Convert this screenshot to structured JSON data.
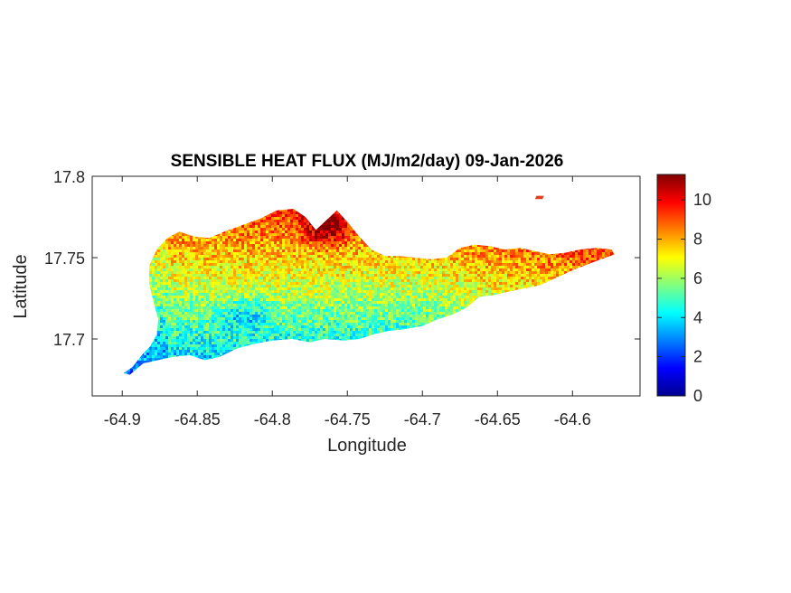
{
  "chart_data": {
    "type": "heatmap",
    "title": "SENSIBLE HEAT FLUX (MJ/m2/day) 09-Jan-2026",
    "xlabel": "Longitude",
    "ylabel": "Latitude",
    "xlim": [
      -64.92,
      -64.555
    ],
    "ylim": [
      17.665,
      17.8
    ],
    "x_ticks": [
      -64.9,
      -64.85,
      -64.8,
      -64.75,
      -64.7,
      -64.65,
      -64.6
    ],
    "x_tick_labels": [
      "-64.9",
      "-64.85",
      "-64.8",
      "-64.75",
      "-64.7",
      "-64.65",
      "-64.6"
    ],
    "y_ticks": [
      17.7,
      17.75,
      17.8
    ],
    "y_tick_labels": [
      "17.7",
      "17.75",
      "17.8"
    ],
    "colormap": "jet",
    "colorbar": {
      "range": [
        0,
        11.3
      ],
      "ticks": [
        0,
        2,
        4,
        6,
        8,
        10
      ],
      "tick_labels": [
        "0",
        "2",
        "4",
        "6",
        "8",
        "10"
      ]
    },
    "grid": false,
    "island_outline": [
      [
        -64.899,
        17.679
      ],
      [
        -64.893,
        17.683
      ],
      [
        -64.887,
        17.69
      ],
      [
        -64.881,
        17.696
      ],
      [
        -64.877,
        17.703
      ],
      [
        -64.876,
        17.712
      ],
      [
        -64.879,
        17.722
      ],
      [
        -64.882,
        17.734
      ],
      [
        -64.882,
        17.745
      ],
      [
        -64.877,
        17.755
      ],
      [
        -64.87,
        17.762
      ],
      [
        -64.862,
        17.766
      ],
      [
        -64.852,
        17.763
      ],
      [
        -64.842,
        17.762
      ],
      [
        -64.832,
        17.766
      ],
      [
        -64.82,
        17.77
      ],
      [
        -64.808,
        17.774
      ],
      [
        -64.797,
        17.779
      ],
      [
        -64.786,
        17.78
      ],
      [
        -64.778,
        17.775
      ],
      [
        -64.771,
        17.767
      ],
      [
        -64.764,
        17.773
      ],
      [
        -64.757,
        17.779
      ],
      [
        -64.75,
        17.772
      ],
      [
        -64.742,
        17.763
      ],
      [
        -64.734,
        17.755
      ],
      [
        -64.725,
        17.751
      ],
      [
        -64.715,
        17.751
      ],
      [
        -64.705,
        17.75
      ],
      [
        -64.695,
        17.749
      ],
      [
        -64.684,
        17.75
      ],
      [
        -64.675,
        17.756
      ],
      [
        -64.665,
        17.758
      ],
      [
        -64.655,
        17.757
      ],
      [
        -64.645,
        17.755
      ],
      [
        -64.635,
        17.756
      ],
      [
        -64.625,
        17.754
      ],
      [
        -64.615,
        17.752
      ],
      [
        -64.605,
        17.753
      ],
      [
        -64.595,
        17.755
      ],
      [
        -64.584,
        17.756
      ],
      [
        -64.574,
        17.755
      ],
      [
        -64.572,
        17.752
      ],
      [
        -64.584,
        17.748
      ],
      [
        -64.598,
        17.743
      ],
      [
        -64.61,
        17.738
      ],
      [
        -64.622,
        17.733
      ],
      [
        -64.633,
        17.731
      ],
      [
        -64.643,
        17.729
      ],
      [
        -64.652,
        17.727
      ],
      [
        -64.662,
        17.726
      ],
      [
        -64.671,
        17.719
      ],
      [
        -64.68,
        17.715
      ],
      [
        -64.69,
        17.712
      ],
      [
        -64.7,
        17.708
      ],
      [
        -64.712,
        17.706
      ],
      [
        -64.722,
        17.705
      ],
      [
        -64.732,
        17.703
      ],
      [
        -64.742,
        17.7
      ],
      [
        -64.752,
        17.699
      ],
      [
        -64.765,
        17.7
      ],
      [
        -64.775,
        17.698
      ],
      [
        -64.787,
        17.7
      ],
      [
        -64.8,
        17.699
      ],
      [
        -64.812,
        17.697
      ],
      [
        -64.824,
        17.694
      ],
      [
        -64.835,
        17.689
      ],
      [
        -64.845,
        17.687
      ],
      [
        -64.855,
        17.69
      ],
      [
        -64.866,
        17.689
      ],
      [
        -64.876,
        17.687
      ],
      [
        -64.886,
        17.685
      ],
      [
        -64.895,
        17.678
      ]
    ],
    "small_islet": [
      [
        -64.624,
        17.788
      ],
      [
        -64.619,
        17.788
      ],
      [
        -64.62,
        17.786
      ],
      [
        -64.625,
        17.786
      ]
    ]
  }
}
